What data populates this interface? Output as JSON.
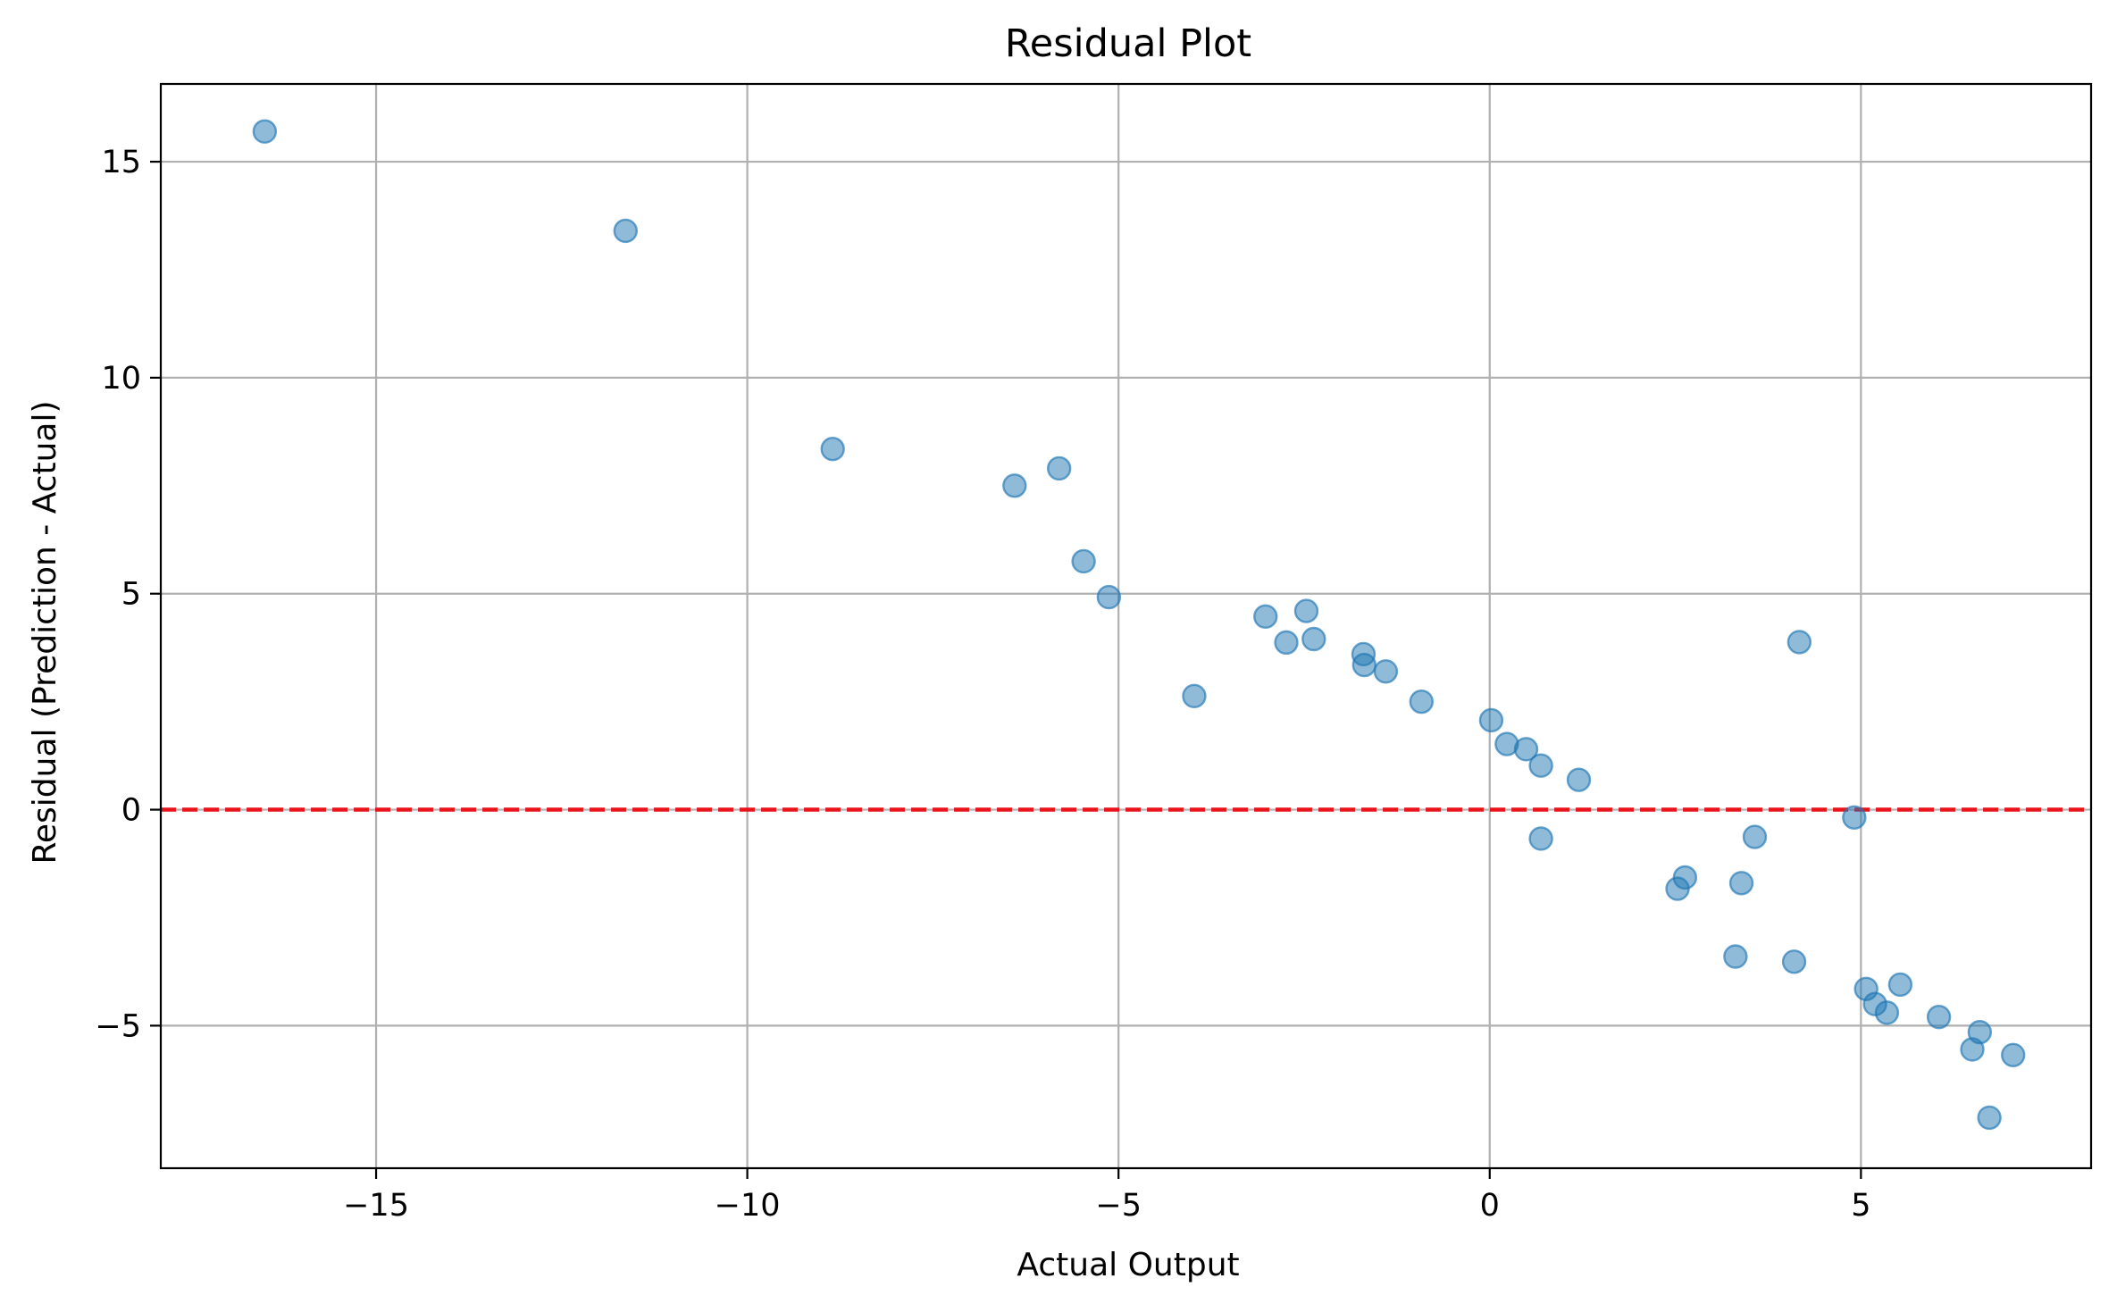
{
  "chart_data": {
    "type": "scatter",
    "title": "Residual Plot",
    "xlabel": "Actual Output",
    "ylabel": "Residual (Prediction - Actual)",
    "xlim": [
      -17.9,
      8.1
    ],
    "ylim": [
      -8.3,
      16.8
    ],
    "x_ticks": [
      -15,
      -10,
      -5,
      0,
      5
    ],
    "x_tick_labels": [
      "−15",
      "−10",
      "−5",
      "0",
      "5"
    ],
    "y_ticks": [
      -5,
      0,
      5,
      10,
      15
    ],
    "y_tick_labels": [
      "−5",
      "0",
      "5",
      "10",
      "15"
    ],
    "grid": true,
    "reference_line": {
      "y": 0,
      "style": "dashed",
      "color": "#e41a1c"
    },
    "colors": {
      "points": "#1f77b4",
      "reference_line": "#e8141a",
      "grid": "#b0b0b0"
    },
    "point_alpha": 0.5,
    "points": [
      {
        "x": -16.5,
        "y": 15.7
      },
      {
        "x": -11.64,
        "y": 13.4
      },
      {
        "x": -8.85,
        "y": 8.35
      },
      {
        "x": -6.4,
        "y": 7.5
      },
      {
        "x": -5.8,
        "y": 7.9
      },
      {
        "x": -5.47,
        "y": 5.75
      },
      {
        "x": -5.13,
        "y": 4.92
      },
      {
        "x": -3.98,
        "y": 2.63
      },
      {
        "x": -3.02,
        "y": 4.47
      },
      {
        "x": -2.74,
        "y": 3.87
      },
      {
        "x": -2.47,
        "y": 4.6
      },
      {
        "x": -2.37,
        "y": 3.95
      },
      {
        "x": -1.7,
        "y": 3.6
      },
      {
        "x": -1.69,
        "y": 3.35
      },
      {
        "x": -1.4,
        "y": 3.2
      },
      {
        "x": -0.92,
        "y": 2.5
      },
      {
        "x": 0.02,
        "y": 2.07
      },
      {
        "x": 0.23,
        "y": 1.52
      },
      {
        "x": 0.49,
        "y": 1.4
      },
      {
        "x": 0.69,
        "y": 1.02
      },
      {
        "x": 1.2,
        "y": 0.69
      },
      {
        "x": 0.69,
        "y": -0.67
      },
      {
        "x": 2.53,
        "y": -1.83
      },
      {
        "x": 2.63,
        "y": -1.57
      },
      {
        "x": 3.31,
        "y": -3.4
      },
      {
        "x": 3.39,
        "y": -1.7
      },
      {
        "x": 3.57,
        "y": -0.63
      },
      {
        "x": 4.1,
        "y": -3.52
      },
      {
        "x": 4.17,
        "y": 3.88
      },
      {
        "x": 4.91,
        "y": -0.18
      },
      {
        "x": 5.07,
        "y": -4.15
      },
      {
        "x": 5.19,
        "y": -4.5
      },
      {
        "x": 5.35,
        "y": -4.7
      },
      {
        "x": 5.53,
        "y": -4.05
      },
      {
        "x": 6.05,
        "y": -4.8
      },
      {
        "x": 6.5,
        "y": -5.55
      },
      {
        "x": 6.6,
        "y": -5.15
      },
      {
        "x": 6.73,
        "y": -7.13
      },
      {
        "x": 7.05,
        "y": -5.68
      }
    ]
  }
}
